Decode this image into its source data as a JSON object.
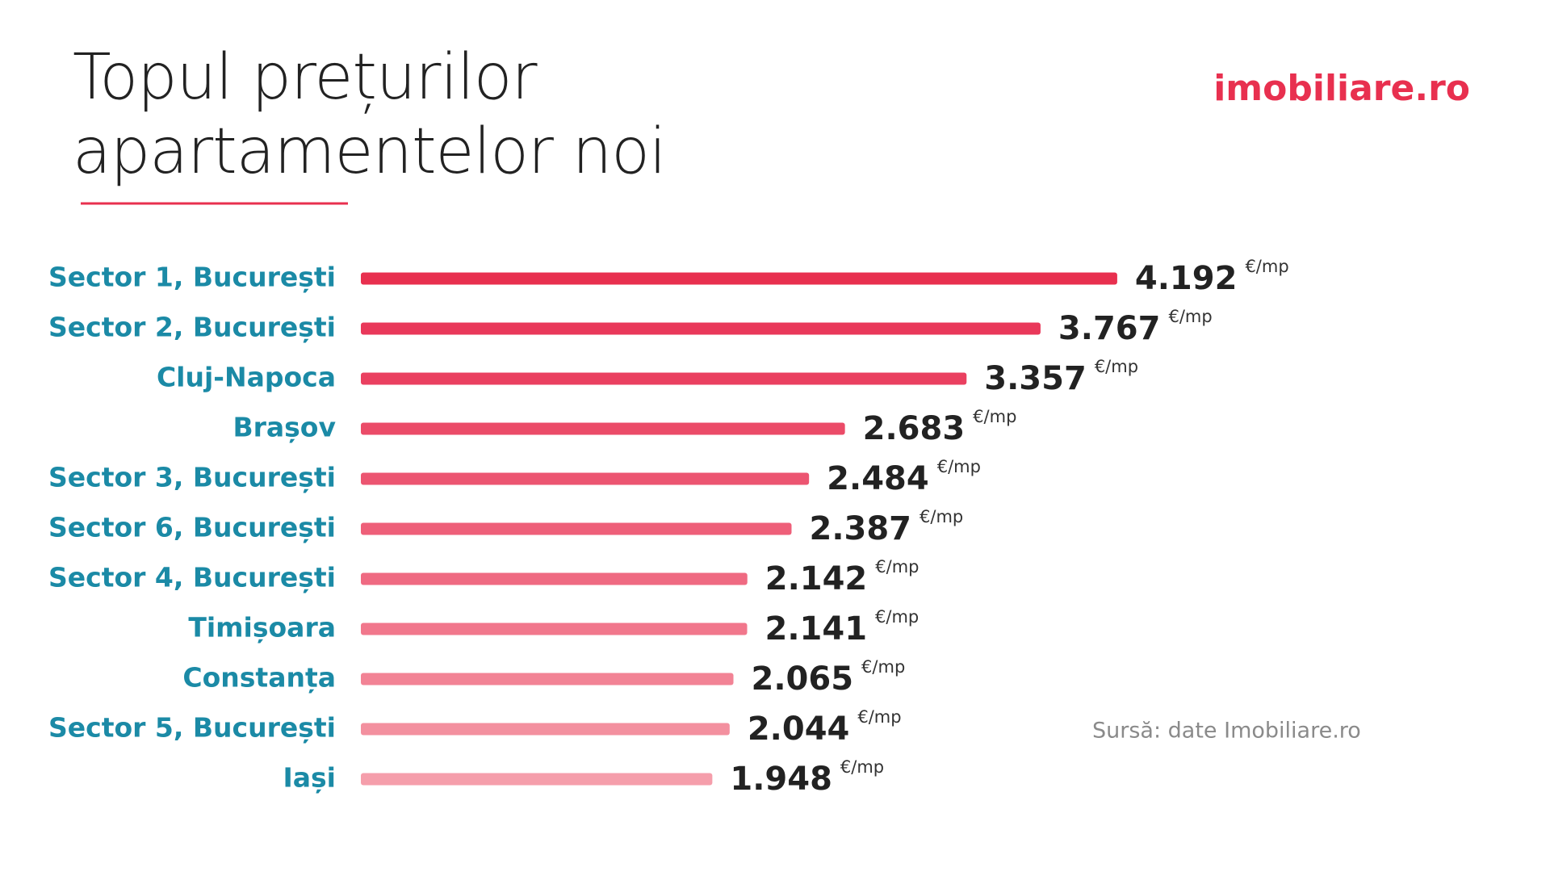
{
  "chart_data": {
    "type": "hbar",
    "title": "Topul prețurilor apartamentelor noi",
    "brand": "imobiliare.ro",
    "source": "Sursă: date Imobiliare.ro",
    "unit": "€/mp",
    "categories": [
      "Sector 1, București",
      "Sector 2, București",
      "Cluj-Napoca",
      "Brașov",
      "Sector 3, București",
      "Sector 6, București",
      "Sector 4, București",
      "Timișoara",
      "Constanța",
      "Sector 5, București",
      "Iași"
    ],
    "values": [
      4192,
      3767,
      3357,
      2683,
      2484,
      2387,
      2142,
      2141,
      2065,
      2044,
      1948
    ],
    "value_labels": [
      "4.192",
      "3.767",
      "3.357",
      "2.683",
      "2.484",
      "2.387",
      "2.142",
      "2.141",
      "2.065",
      "2.044",
      "1.948"
    ],
    "colors": [
      "#e8304f",
      "#e9385a",
      "#ea4060",
      "#eb4b68",
      "#ec5571",
      "#ee5f79",
      "#ef6a82",
      "#f1778c",
      "#f28395",
      "#f3909f",
      "#f59eab"
    ]
  }
}
